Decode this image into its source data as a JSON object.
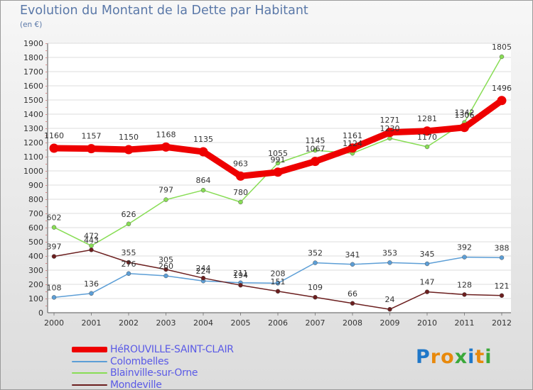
{
  "chart_data": {
    "type": "line",
    "title": "Evolution du Montant de la Dette par Habitant",
    "subtitle": "(en €)",
    "x": [
      "2000",
      "2001",
      "2002",
      "2003",
      "2004",
      "2005",
      "2006",
      "2007",
      "2008",
      "2009",
      "2010",
      "2011",
      "2012"
    ],
    "ylim": [
      0,
      1900
    ],
    "yticks": [
      0,
      100,
      200,
      300,
      400,
      500,
      600,
      700,
      800,
      900,
      1000,
      1100,
      1200,
      1300,
      1400,
      1500,
      1600,
      1700,
      1800,
      1900
    ],
    "grid": true,
    "legend_position": "bottom-left",
    "series": [
      {
        "name": "HéROUVILLE-SAINT-CLAIR",
        "color": "#ee0000",
        "width": 9,
        "values": [
          1160,
          1157,
          1150,
          1168,
          1135,
          963,
          991,
          1067,
          1161,
          1271,
          1281,
          1306,
          1496
        ]
      },
      {
        "name": "Colombelles",
        "color": "#5c9ed6",
        "width": 1.5,
        "values": [
          108,
          136,
          276,
          260,
          224,
          211,
          208,
          352,
          341,
          353,
          345,
          392,
          388
        ]
      },
      {
        "name": "Blainville-sur-Orne",
        "color": "#88dd55",
        "width": 1.5,
        "values": [
          602,
          472,
          626,
          797,
          864,
          780,
          1055,
          1145,
          1124,
          1230,
          1170,
          1342,
          1805
        ]
      },
      {
        "name": "Mondeville",
        "color": "#6b1e1e",
        "width": 1.5,
        "values": [
          397,
          443,
          355,
          305,
          244,
          194,
          151,
          109,
          66,
          24,
          147,
          128,
          121
        ]
      }
    ]
  },
  "logo": {
    "letters": [
      "P",
      "r",
      "o",
      "x",
      "i",
      "t",
      "i"
    ],
    "colors": [
      "#1f77c8",
      "#e8890c",
      "#e8890c",
      "#3aa83a",
      "#1f77c8",
      "#e8890c",
      "#3aa83a"
    ]
  }
}
